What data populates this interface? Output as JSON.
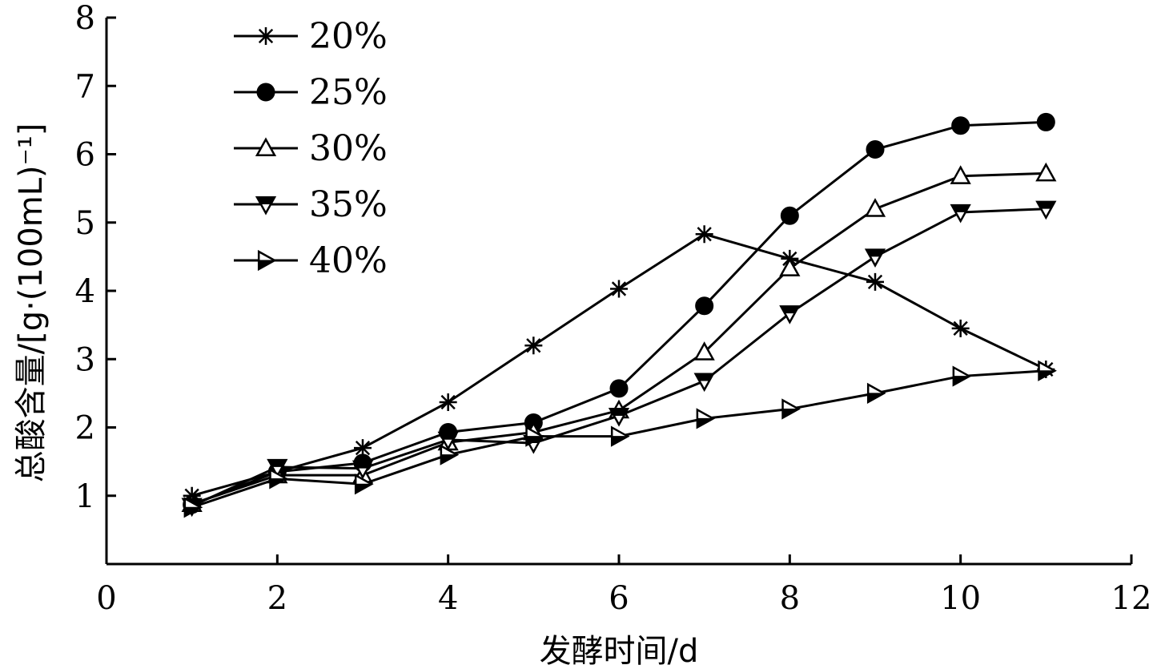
{
  "chart_data": {
    "type": "line",
    "title": "",
    "xlabel": "发酵时间/d",
    "ylabel": "总酸含量/[g·(100mL)⁻¹]",
    "xlim": [
      0,
      12
    ],
    "ylim": [
      0,
      8
    ],
    "xticks": [
      0,
      2,
      4,
      6,
      8,
      10,
      12
    ],
    "yticks": [
      1,
      2,
      3,
      4,
      5,
      6,
      7,
      8
    ],
    "grid": false,
    "legend_position": "top-left",
    "x": [
      1,
      2,
      3,
      4,
      5,
      6,
      7,
      8,
      9,
      10,
      11
    ],
    "series": [
      {
        "name": "20%",
        "marker": "star",
        "values": [
          1.0,
          1.35,
          1.7,
          2.37,
          3.2,
          4.03,
          4.83,
          4.47,
          4.13,
          3.45,
          2.85
        ]
      },
      {
        "name": "25%",
        "marker": "filled-circle",
        "values": [
          0.87,
          1.35,
          1.48,
          1.93,
          2.07,
          2.57,
          3.78,
          5.1,
          6.07,
          6.42,
          6.47
        ]
      },
      {
        "name": "30%",
        "marker": "open-triangle-up",
        "values": [
          0.88,
          1.3,
          1.3,
          1.78,
          1.93,
          2.25,
          3.1,
          4.33,
          5.2,
          5.68,
          5.72
        ]
      },
      {
        "name": "35%",
        "marker": "half-triangle-down",
        "values": [
          0.85,
          1.42,
          1.4,
          1.82,
          1.77,
          2.17,
          2.68,
          3.67,
          4.5,
          5.15,
          5.2
        ]
      },
      {
        "name": "40%",
        "marker": "half-triangle-right",
        "values": [
          0.83,
          1.25,
          1.17,
          1.6,
          1.87,
          1.87,
          2.13,
          2.27,
          2.5,
          2.75,
          2.83
        ]
      }
    ]
  }
}
